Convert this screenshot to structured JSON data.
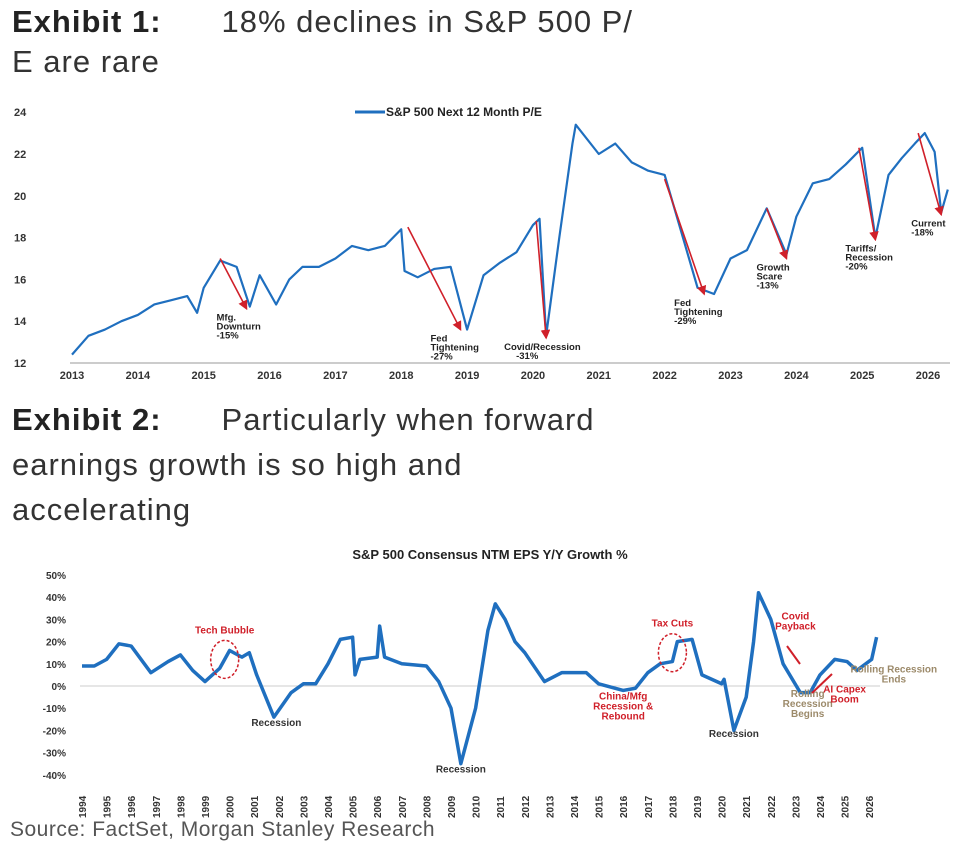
{
  "exhibit1": {
    "label": "Exhibit 1:",
    "title_line1": "18% declines in S&P 500 P/",
    "title_line2": "E are rare"
  },
  "exhibit2": {
    "label": "Exhibit 2:",
    "title_line1": "Particularly when forward",
    "title_line2": "earnings growth is so high and",
    "title_line3": "accelerating"
  },
  "source": "Source: FactSet, Morgan Stanley Research",
  "chart_data": [
    {
      "type": "line",
      "title": "",
      "legend": "S&P 500 Next 12 Month P/E",
      "legend_placement": "top-center",
      "ylim": [
        12,
        24
      ],
      "yticks": [
        12,
        14,
        16,
        18,
        20,
        22,
        24
      ],
      "xlim": [
        2013,
        2026.3
      ],
      "xticks": [
        2013,
        2014,
        2015,
        2016,
        2017,
        2018,
        2019,
        2020,
        2021,
        2022,
        2023,
        2024,
        2025,
        2026
      ],
      "line_color": "#1f6fbf",
      "annotation_color": "#d0202a",
      "x": [
        2013.0,
        2013.25,
        2013.5,
        2013.75,
        2014.0,
        2014.25,
        2014.5,
        2014.75,
        2014.9,
        2015.0,
        2015.25,
        2015.5,
        2015.7,
        2015.85,
        2016.1,
        2016.3,
        2016.5,
        2016.75,
        2017.0,
        2017.25,
        2017.5,
        2017.75,
        2018.0,
        2018.05,
        2018.25,
        2018.5,
        2018.75,
        2019.0,
        2019.25,
        2019.5,
        2019.75,
        2020.0,
        2020.1,
        2020.2,
        2020.4,
        2020.6,
        2020.65,
        2021.0,
        2021.25,
        2021.5,
        2021.75,
        2022.0,
        2022.25,
        2022.5,
        2022.75,
        2023.0,
        2023.25,
        2023.55,
        2023.85,
        2024.0,
        2024.25,
        2024.5,
        2024.75,
        2025.0,
        2025.2,
        2025.4,
        2025.6,
        2025.8,
        2025.95,
        2026.1,
        2026.2,
        2026.3
      ],
      "y": [
        12.4,
        13.3,
        13.6,
        14.0,
        14.3,
        14.8,
        15.0,
        15.2,
        14.4,
        15.6,
        16.9,
        16.6,
        14.7,
        16.2,
        14.8,
        16.0,
        16.6,
        16.6,
        17.0,
        17.6,
        17.4,
        17.6,
        18.4,
        16.4,
        16.1,
        16.5,
        16.6,
        13.6,
        16.2,
        16.8,
        17.3,
        18.6,
        18.9,
        13.3,
        18.0,
        22.5,
        23.4,
        22.0,
        22.5,
        21.6,
        21.2,
        21.0,
        18.3,
        15.6,
        15.3,
        17.0,
        17.4,
        19.4,
        17.2,
        19.0,
        20.6,
        20.8,
        21.5,
        22.3,
        18.0,
        21.0,
        21.8,
        22.5,
        23.0,
        22.1,
        19.2,
        20.3
      ],
      "annotations": [
        {
          "label": [
            "Mfg.",
            "Downturn",
            "-15%"
          ],
          "from": [
            2015.25,
            17.0
          ],
          "to": [
            2015.65,
            14.6
          ]
        },
        {
          "label": [
            "Fed",
            "Tightening",
            "-27%"
          ],
          "from": [
            2018.1,
            18.5
          ],
          "to": [
            2018.9,
            13.6
          ]
        },
        {
          "label": [
            "Covid/Recession",
            "-31%"
          ],
          "from": [
            2020.05,
            18.8
          ],
          "to": [
            2020.2,
            13.2
          ]
        },
        {
          "label": [
            "Fed",
            "Tightening",
            "-29%"
          ],
          "from": [
            2022.0,
            20.8
          ],
          "to": [
            2022.6,
            15.3
          ]
        },
        {
          "label": [
            "Growth",
            "Scare",
            "-13%"
          ],
          "from": [
            2023.55,
            19.4
          ],
          "to": [
            2023.85,
            17.0
          ]
        },
        {
          "label": [
            "Tariffs/",
            "Recession",
            "-20%"
          ],
          "from": [
            2024.95,
            22.3
          ],
          "to": [
            2025.2,
            17.9
          ]
        },
        {
          "label": [
            "Current",
            "-18%"
          ],
          "from": [
            2025.85,
            23.0
          ],
          "to": [
            2026.2,
            19.1
          ]
        }
      ]
    },
    {
      "type": "line",
      "title": "S&P 500 Consensus NTM EPS Y/Y Growth %",
      "ylim": [
        -40,
        50
      ],
      "yticks": [
        "-40%",
        "-30%",
        "-20%",
        "-10%",
        "0%",
        "10%",
        "20%",
        "30%",
        "40%",
        "50%"
      ],
      "ytick_values": [
        -40,
        -30,
        -20,
        -10,
        0,
        10,
        20,
        30,
        40,
        50
      ],
      "xlim": [
        1994,
        2026
      ],
      "xticks": [
        "1994",
        "1995",
        "1996",
        "1997",
        "1998",
        "1999",
        "2000",
        "2001",
        "2002",
        "2003",
        "2004",
        "2005",
        "2006",
        "2007",
        "2008",
        "2009",
        "2010",
        "2011",
        "2012",
        "2013",
        "2014",
        "2015",
        "2016",
        "2017",
        "2018",
        "2019",
        "2020",
        "2021",
        "2022",
        "2023",
        "2024",
        "2025",
        "2026"
      ],
      "line_color": "#1f6fbf",
      "x": [
        1994,
        1994.5,
        1995,
        1995.5,
        1996,
        1996.8,
        1997.5,
        1998,
        1998.5,
        1999,
        1999.6,
        2000,
        2000.5,
        2000.8,
        2001.1,
        2001.8,
        2002.5,
        2003,
        2003.5,
        2004,
        2004.5,
        2005,
        2005.1,
        2005.3,
        2006,
        2006.1,
        2006.3,
        2007,
        2008,
        2008.5,
        2009,
        2009.4,
        2010,
        2010.5,
        2010.8,
        2011.2,
        2011.6,
        2012,
        2012.8,
        2013.5,
        2014.5,
        2015,
        2016,
        2016.5,
        2017,
        2017.5,
        2018,
        2018.2,
        2018.8,
        2019.2,
        2020,
        2020.1,
        2020.5,
        2021,
        2021.3,
        2021.5,
        2022,
        2022.5,
        2023.2,
        2023.6,
        2024,
        2024.6,
        2025.1,
        2025.5,
        2026.1,
        2026.3
      ],
      "y": [
        9,
        9,
        12,
        19,
        18,
        6,
        11,
        14,
        7,
        2,
        8,
        16,
        13,
        15,
        5,
        -14,
        -3,
        1,
        1,
        10,
        21,
        22,
        5,
        12,
        13,
        27,
        13,
        10,
        9,
        2,
        -10,
        -35,
        -10,
        25,
        37,
        30,
        20,
        15,
        2,
        6,
        6,
        1,
        -2,
        -1,
        6,
        10,
        11,
        20,
        21,
        5,
        1,
        3,
        -20,
        -5,
        20,
        42,
        30,
        10,
        -3,
        -3,
        5,
        12,
        11,
        7,
        12,
        22
      ],
      "annotations": [
        {
          "label": [
            "Tech Bubble"
          ],
          "color": "#d0202a",
          "circle": [
            1999.8,
            12
          ]
        },
        {
          "label": [
            "Recession"
          ],
          "color": "#333333",
          "at": [
            2001.9,
            -18
          ]
        },
        {
          "label": [
            "Recession"
          ],
          "color": "#333333",
          "at": [
            2009.4,
            -39
          ]
        },
        {
          "label": [
            "Tax Cuts"
          ],
          "color": "#d0202a",
          "circle": [
            2018.0,
            15
          ]
        },
        {
          "label": [
            "China/Mfg",
            "Recession &",
            "Rebound"
          ],
          "color": "#d0202a",
          "at": [
            2016.0,
            -6
          ]
        },
        {
          "label": [
            "Recession"
          ],
          "color": "#333333",
          "at": [
            2020.5,
            -23
          ]
        },
        {
          "label": [
            "Covid",
            "Payback"
          ],
          "color": "#d0202a",
          "at": [
            2023.0,
            30
          ]
        },
        {
          "label": [
            "Rolling",
            "Recession",
            "Begins"
          ],
          "color": "#9c8a6a",
          "at": [
            2023.5,
            -5
          ]
        },
        {
          "label": [
            "AI Capex",
            "Boom"
          ],
          "color": "#d0202a",
          "at": [
            2025.0,
            -3
          ]
        },
        {
          "label": [
            "Rolling Recession",
            "Ends"
          ],
          "color": "#9c8a6a",
          "at": [
            2027.0,
            6
          ]
        }
      ]
    }
  ]
}
